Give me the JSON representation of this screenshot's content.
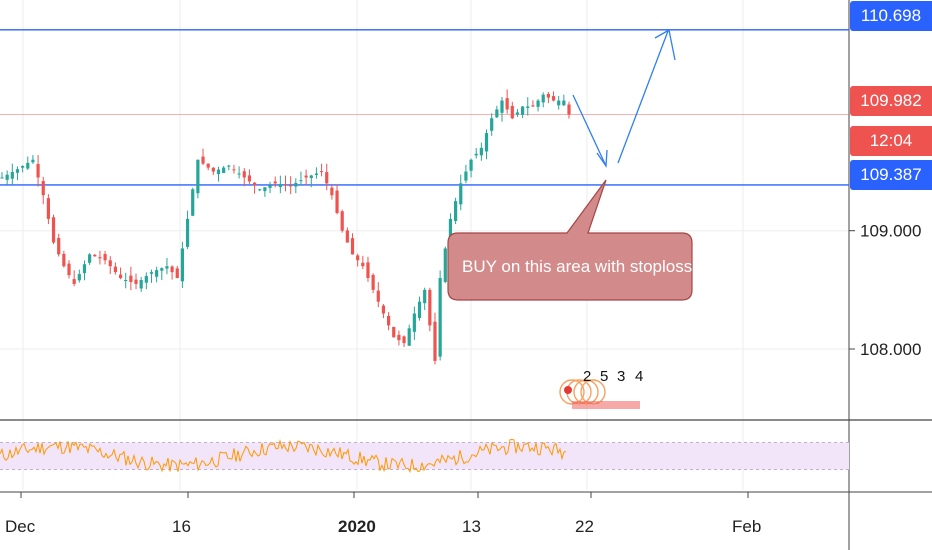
{
  "colors": {
    "up": "#26a69a",
    "down": "#ef5350",
    "resistance_line": "#2962ff",
    "support_line": "#2962ff",
    "last_price_line": "#ef5350",
    "rsi_band": "#f3e5f9",
    "rsi_line": "#ff9800",
    "callout_fill": "#d28a8a",
    "callout_border": "#a64545",
    "arrow": "#2f80ed",
    "grid": "#eeeeee"
  },
  "price_axis": {
    "labels": [
      "109.000",
      "108.000"
    ],
    "label_values": [
      109.0,
      108.0
    ],
    "tags": [
      {
        "text": "110.698",
        "value": 110.698,
        "color": "#2962ff"
      },
      {
        "text": "109.982",
        "value": 109.982,
        "color": "#ef5350"
      },
      {
        "text": "12:04",
        "value": 109.75,
        "color": "#ef5350"
      },
      {
        "text": "109.387",
        "value": 109.387,
        "color": "#2962ff"
      }
    ]
  },
  "time_axis": {
    "labels": [
      "Dec",
      "16",
      "2020",
      "13",
      "22",
      "Feb"
    ],
    "bold": [
      false,
      false,
      true,
      false,
      false,
      false
    ]
  },
  "annotation": {
    "text": "BUY on this area with stoploss"
  },
  "pattern_labels": [
    "2",
    "5",
    "3",
    "4"
  ],
  "chart_data": {
    "type": "candlestick",
    "title": "",
    "ylim": [
      107.4,
      110.95
    ],
    "horizontal_levels": [
      110.698,
      109.387
    ],
    "last_price": 109.982,
    "close_series": [
      [
        0,
        109.45
      ],
      [
        3,
        109.52
      ],
      [
        6,
        109.6
      ],
      [
        8,
        109.3
      ],
      [
        10,
        108.9
      ],
      [
        12,
        108.7
      ],
      [
        14,
        108.55
      ],
      [
        17,
        108.8
      ],
      [
        20,
        108.75
      ],
      [
        23,
        108.6
      ],
      [
        26,
        108.55
      ],
      [
        29,
        108.65
      ],
      [
        32,
        108.7
      ],
      [
        34,
        108.6
      ],
      [
        36,
        109.1
      ],
      [
        38,
        109.6
      ],
      [
        41,
        109.5
      ],
      [
        44,
        109.55
      ],
      [
        47,
        109.45
      ],
      [
        50,
        109.35
      ],
      [
        53,
        109.4
      ],
      [
        56,
        109.38
      ],
      [
        59,
        109.45
      ],
      [
        62,
        109.5
      ],
      [
        64,
        109.3
      ],
      [
        66,
        109.0
      ],
      [
        68,
        108.8
      ],
      [
        70,
        108.7
      ],
      [
        72,
        108.5
      ],
      [
        74,
        108.3
      ],
      [
        76,
        108.1
      ],
      [
        78,
        108.05
      ],
      [
        80,
        108.3
      ],
      [
        82,
        108.5
      ],
      [
        84,
        107.9
      ],
      [
        85,
        108.6
      ],
      [
        87,
        109.1
      ],
      [
        89,
        109.4
      ],
      [
        91,
        109.6
      ],
      [
        93,
        109.7
      ],
      [
        95,
        109.95
      ],
      [
        97,
        110.1
      ],
      [
        99,
        109.95
      ],
      [
        101,
        110.05
      ],
      [
        103,
        110.05
      ],
      [
        105,
        110.15
      ],
      [
        107,
        110.1
      ],
      [
        109,
        110.1
      ],
      [
        110,
        109.982
      ]
    ],
    "rsi": {
      "band": [
        30,
        70
      ],
      "range": [
        0,
        100
      ]
    }
  }
}
